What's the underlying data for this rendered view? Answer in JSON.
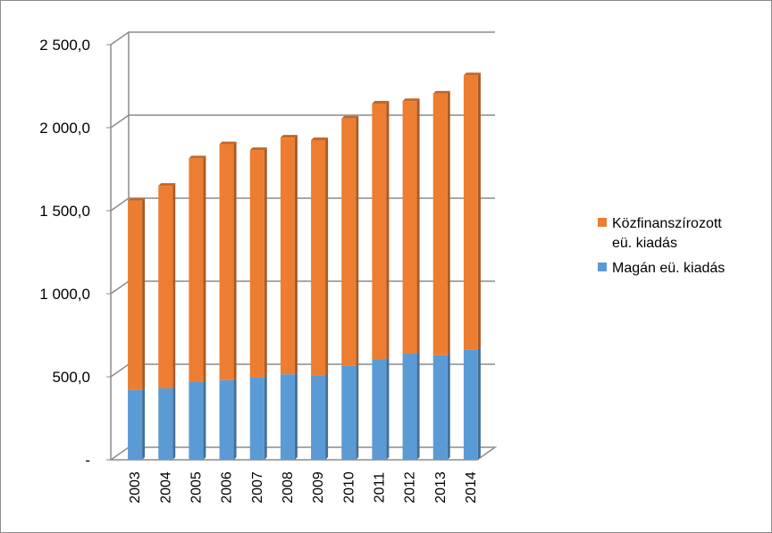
{
  "chart_data": {
    "type": "bar",
    "stacked": true,
    "three_d": true,
    "categories": [
      "2003",
      "2004",
      "2005",
      "2006",
      "2007",
      "2008",
      "2009",
      "2010",
      "2011",
      "2012",
      "2013",
      "2014"
    ],
    "series": [
      {
        "name": "Magán eü. kiadás",
        "color": "#5b9bd5",
        "values": [
          420,
          430,
          470,
          480,
          495,
          515,
          510,
          565,
          605,
          640,
          630,
          665
        ]
      },
      {
        "name": "Közfinanszírozott eü. kiadás",
        "color": "#ed7d31",
        "values": [
          1140,
          1220,
          1345,
          1420,
          1370,
          1425,
          1415,
          1490,
          1540,
          1520,
          1575,
          1650
        ]
      }
    ],
    "ylim": [
      0,
      2500
    ],
    "y_ticks": [
      0,
      500,
      1000,
      1500,
      2000,
      2500
    ],
    "y_tick_labels": [
      "-",
      "500,0",
      "1 000,0",
      "1 500,0",
      "2 000,0",
      "2 500,0"
    ],
    "grid": true,
    "legend": {
      "placement": "right",
      "entries": [
        {
          "lines": [
            "Közfinanszírozott",
            "eü. kiadás"
          ],
          "color": "#ed7d31"
        },
        {
          "lines": [
            "Magán eü. kiadás"
          ],
          "color": "#5b9bd5"
        }
      ]
    }
  }
}
